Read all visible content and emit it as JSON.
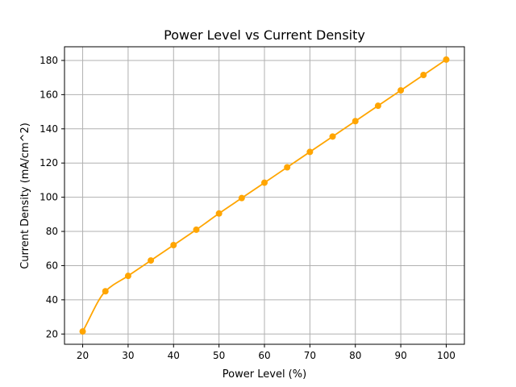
{
  "chart_data": {
    "type": "line",
    "title": "Power Level vs Current Density",
    "xlabel": "Power Level (%)",
    "ylabel": "Current Density (mA/cm^2)",
    "xlim": [
      16,
      104
    ],
    "ylim": [
      14,
      188
    ],
    "xticks": [
      20,
      30,
      40,
      50,
      60,
      70,
      80,
      90,
      100
    ],
    "yticks": [
      20,
      40,
      60,
      80,
      100,
      120,
      140,
      160,
      180
    ],
    "grid": true,
    "series": [
      {
        "color": "#ffa500",
        "x": [
          20,
          25,
          30,
          35,
          40,
          45,
          50,
          55,
          60,
          65,
          70,
          75,
          80,
          85,
          90,
          95,
          100
        ],
        "y": [
          21.5,
          45,
          54,
          63,
          72,
          81,
          90.5,
          99.5,
          108.5,
          117.5,
          126.5,
          135.5,
          144.5,
          153.5,
          162.5,
          171.5,
          180.5
        ]
      }
    ]
  }
}
